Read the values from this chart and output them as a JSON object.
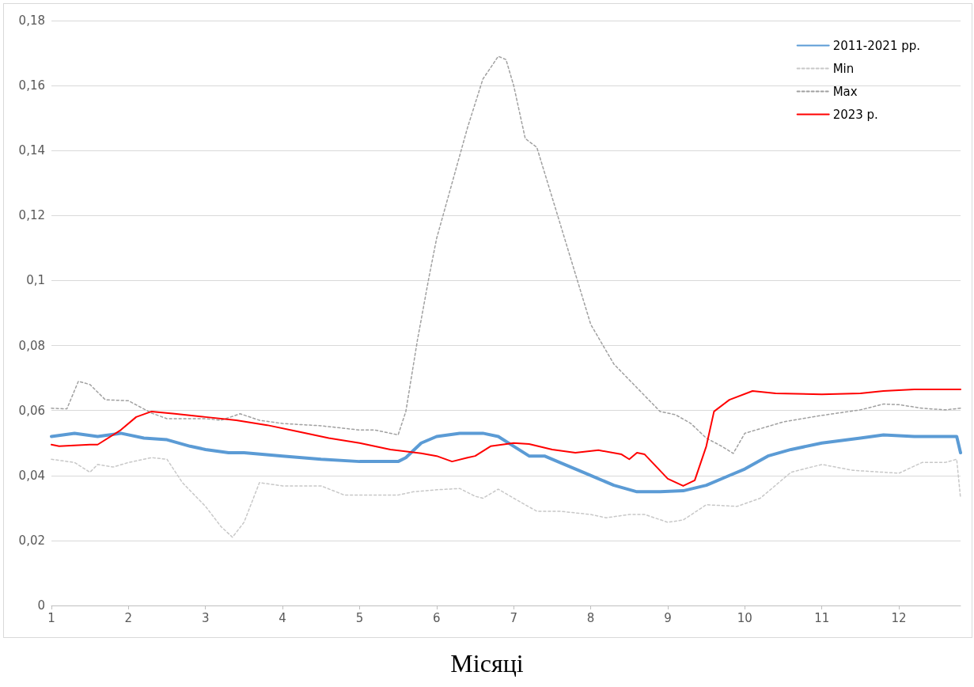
{
  "chart_data": {
    "type": "line",
    "xlabel": "Місяці",
    "legend": "top right",
    "grid": "y",
    "marker": "none",
    "xlim": [
      1,
      12.8
    ],
    "xticks": [
      1,
      2,
      3,
      4,
      5,
      6,
      7,
      8,
      9,
      10,
      11,
      12
    ],
    "ylim": [
      0,
      0.18
    ],
    "yticks": [
      0,
      {
        "value": 0.02,
        "label": "0,02"
      },
      {
        "value": 0.04,
        "label": "0,04"
      },
      {
        "value": 0.06,
        "label": "0,06"
      },
      {
        "value": 0.08,
        "label": "0,08"
      },
      {
        "value": 0.1,
        "label": "0,1"
      },
      {
        "value": 0.12,
        "label": "0,12"
      },
      {
        "value": 0.14,
        "label": "0,14"
      },
      {
        "value": 0.16,
        "label": "0,16"
      },
      {
        "value": 0.18,
        "label": "0,18"
      }
    ],
    "series": [
      {
        "name": "2011-2021 рр.",
        "color": "#5b9bd5",
        "line_style": "solid",
        "x": [
          1,
          1.3,
          1.6,
          1.9,
          2.2,
          2.5,
          2.8,
          3,
          3.3,
          3.5,
          4,
          4.5,
          5,
          5.5,
          5.6,
          5.8,
          6,
          6.3,
          6.6,
          6.8,
          7,
          7.2,
          7.4,
          7.6,
          7.9,
          8.1,
          8.3,
          8.6,
          8.9,
          9.2,
          9.5,
          9.8,
          10,
          10.3,
          10.6,
          11,
          11.5,
          11.8,
          12.2,
          12.75,
          12.8
        ],
        "values": [
          0.052,
          0.053,
          0.052,
          0.053,
          0.0515,
          0.051,
          0.049,
          0.048,
          0.047,
          0.047,
          0.046,
          0.045,
          0.0443,
          0.0443,
          0.0455,
          0.05,
          0.052,
          0.053,
          0.053,
          0.052,
          0.049,
          0.046,
          0.046,
          0.044,
          0.041,
          0.039,
          0.037,
          0.035,
          0.035,
          0.0353,
          0.037,
          0.04,
          0.042,
          0.046,
          0.048,
          0.05,
          0.0515,
          0.0525,
          0.052,
          0.052,
          0.047
        ]
      },
      {
        "name": "Min",
        "color": "#c8c8c8",
        "line_style": "dashed",
        "x": [
          1,
          1.3,
          1.5,
          1.6,
          1.8,
          2,
          2.3,
          2.5,
          2.7,
          3,
          3.2,
          3.35,
          3.5,
          3.7,
          4,
          4.5,
          4.8,
          5,
          5.5,
          5.7,
          6,
          6.3,
          6.5,
          6.6,
          6.8,
          7,
          7.3,
          7.6,
          8,
          8.2,
          8.5,
          8.7,
          9,
          9.2,
          9.5,
          9.9,
          10.2,
          10.6,
          11,
          11.4,
          12,
          12.3,
          12.6,
          12.75,
          12.8
        ],
        "values": [
          0.045,
          0.044,
          0.041,
          0.0434,
          0.0426,
          0.044,
          0.0455,
          0.045,
          0.0378,
          0.0305,
          0.0243,
          0.021,
          0.0256,
          0.0378,
          0.0368,
          0.0368,
          0.034,
          0.034,
          0.034,
          0.035,
          0.0356,
          0.036,
          0.0336,
          0.033,
          0.0358,
          0.033,
          0.029,
          0.029,
          0.028,
          0.027,
          0.028,
          0.028,
          0.0256,
          0.0263,
          0.031,
          0.0305,
          0.033,
          0.041,
          0.0434,
          0.0416,
          0.0407,
          0.044,
          0.044,
          0.045,
          0.033
        ]
      },
      {
        "name": "Max",
        "color": "#a0a0a0",
        "line_style": "dashed",
        "x": [
          1,
          1.2,
          1.35,
          1.5,
          1.7,
          2,
          2.3,
          2.5,
          2.8,
          3,
          3.2,
          3.45,
          3.7,
          4,
          4.5,
          5,
          5.2,
          5.5,
          5.6,
          5.75,
          5.9,
          6,
          6.2,
          6.4,
          6.6,
          6.8,
          6.9,
          7,
          7.15,
          7.3,
          7.5,
          7.75,
          8,
          8.3,
          8.6,
          8.9,
          9.1,
          9.3,
          9.5,
          9.7,
          9.85,
          10,
          10.5,
          11,
          11.5,
          11.8,
          12,
          12.3,
          12.6,
          12.8
        ],
        "values": [
          0.0607,
          0.0605,
          0.069,
          0.068,
          0.0633,
          0.063,
          0.0592,
          0.0575,
          0.0575,
          0.0575,
          0.057,
          0.059,
          0.057,
          0.056,
          0.0553,
          0.054,
          0.054,
          0.0525,
          0.0597,
          0.0816,
          0.101,
          0.113,
          0.13,
          0.147,
          0.162,
          0.169,
          0.168,
          0.16,
          0.1437,
          0.141,
          0.1255,
          0.106,
          0.0865,
          0.0743,
          0.067,
          0.0597,
          0.0587,
          0.056,
          0.0515,
          0.049,
          0.0468,
          0.053,
          0.0565,
          0.0585,
          0.0602,
          0.062,
          0.0618,
          0.0607,
          0.0602,
          0.0607
        ]
      },
      {
        "name": "2023 р.",
        "color": "#ff0000",
        "line_style": "solid",
        "x": [
          1,
          1.1,
          1.5,
          1.6,
          1.9,
          2.1,
          2.3,
          2.6,
          3,
          3.4,
          3.8,
          4.2,
          4.6,
          5,
          5.4,
          5.8,
          6,
          6.2,
          6.4,
          6.5,
          6.7,
          7,
          7.2,
          7.5,
          7.8,
          8.1,
          8.4,
          8.5,
          8.6,
          8.7,
          9,
          9.2,
          9.35,
          9.5,
          9.6,
          9.8,
          10.1,
          10.4,
          11,
          11.5,
          11.8,
          12.2,
          12.8
        ],
        "values": [
          0.0495,
          0.049,
          0.0495,
          0.0495,
          0.054,
          0.058,
          0.0597,
          0.059,
          0.058,
          0.057,
          0.0555,
          0.0535,
          0.0515,
          0.05,
          0.048,
          0.0468,
          0.046,
          0.0443,
          0.0455,
          0.046,
          0.049,
          0.05,
          0.0497,
          0.048,
          0.047,
          0.0478,
          0.0465,
          0.045,
          0.047,
          0.0465,
          0.039,
          0.0368,
          0.0385,
          0.049,
          0.0597,
          0.0633,
          0.066,
          0.0653,
          0.065,
          0.0653,
          0.066,
          0.0665,
          0.0665
        ]
      }
    ]
  }
}
